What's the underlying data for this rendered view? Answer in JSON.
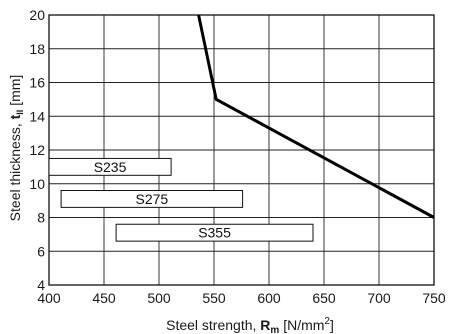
{
  "chart_data": {
    "type": "line",
    "xlabel": {
      "prefix": "Steel strength, ",
      "symbol": "R",
      "symbol_sub": "m",
      "unit_open": " [N/mm",
      "unit_sup": "2",
      "unit_close": "]"
    },
    "ylabel": {
      "prefix": "Steel thickness, ",
      "symbol": "t",
      "symbol_sub": "II",
      "unit": " [mm]"
    },
    "xlim": [
      400,
      750
    ],
    "ylim": [
      4,
      20
    ],
    "xticks": [
      400,
      450,
      500,
      550,
      600,
      650,
      700,
      750
    ],
    "yticks": [
      4,
      6,
      8,
      10,
      12,
      14,
      16,
      18,
      20
    ],
    "grid": true,
    "series": [
      {
        "x": [
          536,
          552,
          750
        ],
        "y": [
          20,
          15,
          8
        ],
        "color": "#000000"
      }
    ],
    "annotations": [
      {
        "label": "S235",
        "x_range": [
          400,
          511
        ],
        "y_range": [
          10.5,
          11.5
        ]
      },
      {
        "label": "S275",
        "x_range": [
          411,
          576
        ],
        "y_range": [
          8.6,
          9.6
        ]
      },
      {
        "label": "S355",
        "x_range": [
          461,
          640
        ],
        "y_range": [
          6.6,
          7.6
        ]
      }
    ]
  }
}
